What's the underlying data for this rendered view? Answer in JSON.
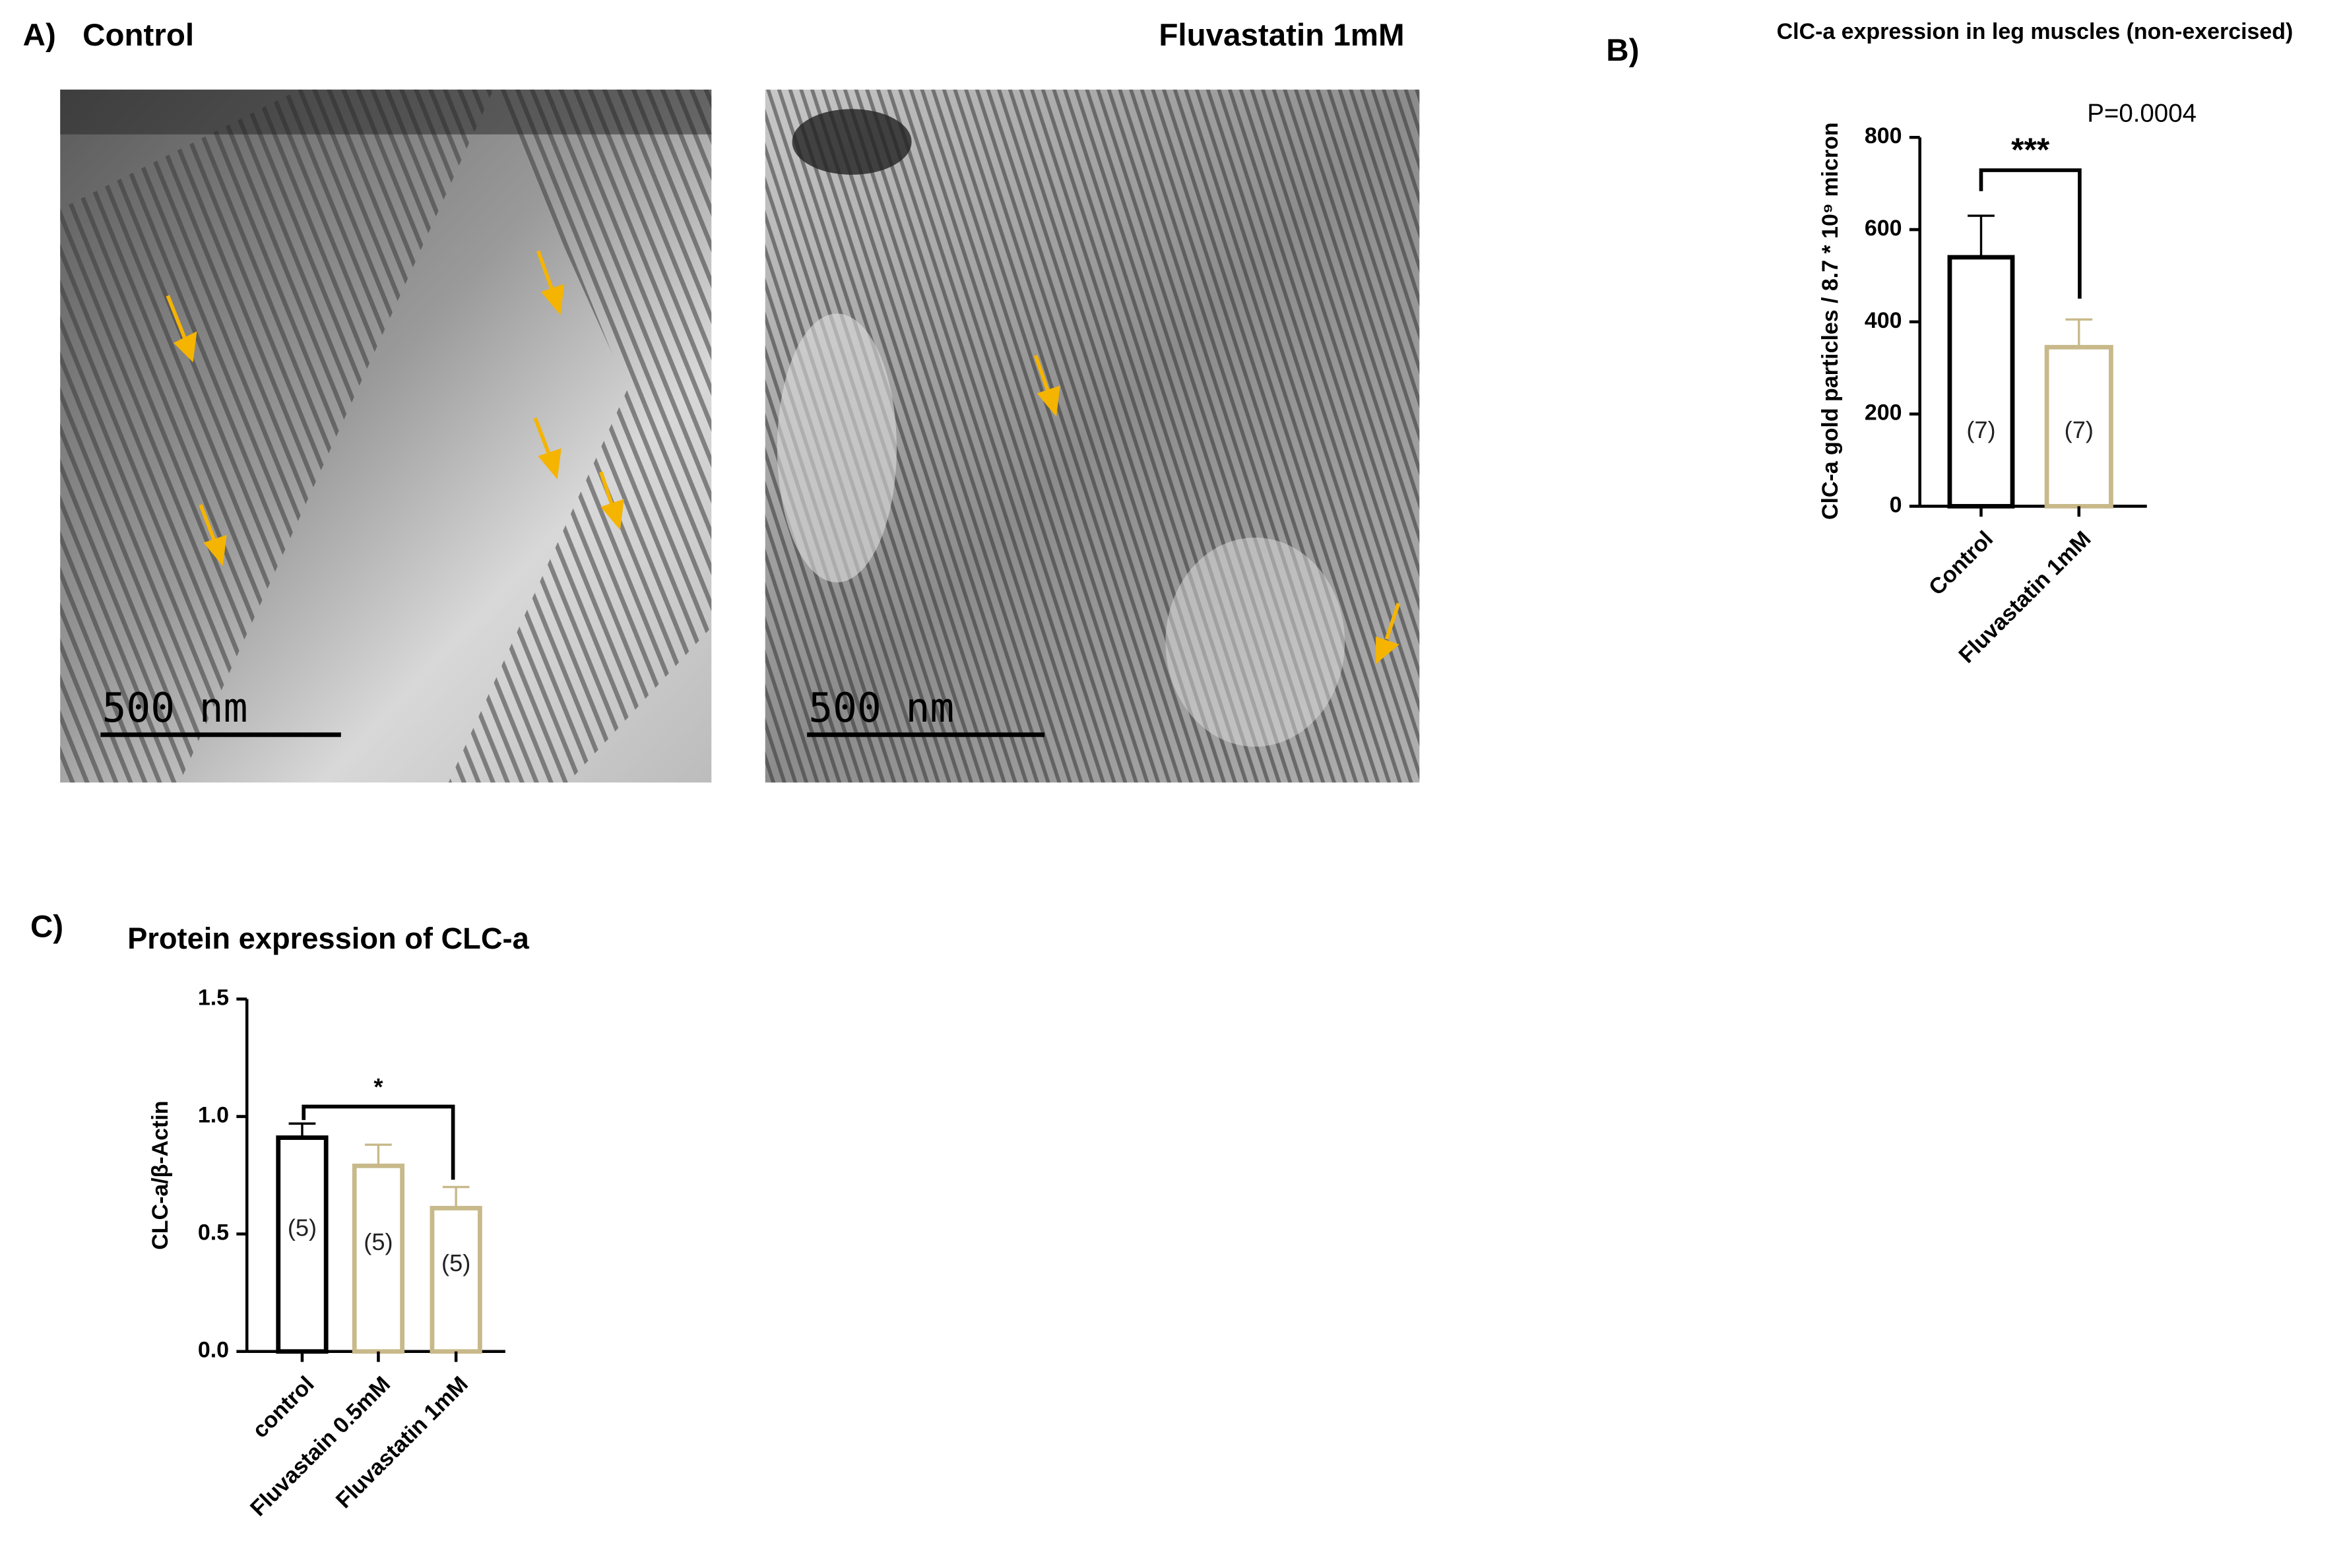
{
  "panel_a": {
    "label": "A)",
    "images": [
      {
        "title": "Control",
        "scale_bar": "500 nm"
      },
      {
        "title": "Fluvastatin 1mM",
        "scale_bar": "500 nm"
      }
    ]
  },
  "chart_data": [
    {
      "type": "bar",
      "panel_label": "B)",
      "title": "ClC-a expression in leg muscles (non-exercised)",
      "ylabel": "ClC-a gold particles / 8.7 * 10⁹ micron",
      "categories": [
        "Control",
        "Fluvastatin 1mM"
      ],
      "values": [
        540,
        345
      ],
      "errors": [
        90,
        60
      ],
      "n_labels": [
        "(7)",
        "(7)"
      ],
      "colors": [
        "#000000",
        "#c8b98a"
      ],
      "ylim": [
        0,
        800
      ],
      "yticks": [
        0,
        200,
        400,
        600,
        800
      ],
      "significance": "***",
      "p_value": "P=0.0004"
    },
    {
      "type": "bar",
      "panel_label": "C)",
      "title": "Protein expression of CLC-a",
      "ylabel": "CLC-a/β-Actin",
      "categories": [
        "control",
        "Fluvastain 0.5mM",
        "Fluvastatin 1mM"
      ],
      "values": [
        0.91,
        0.79,
        0.61
      ],
      "errors": [
        0.06,
        0.09,
        0.09
      ],
      "n_labels": [
        "(5)",
        "(5)",
        "(5)"
      ],
      "colors": [
        "#000000",
        "#c8b98a",
        "#c8b98a"
      ],
      "ylim": [
        0,
        1.5
      ],
      "yticks": [
        {
          "value": 0,
          "label": "0.0"
        },
        0.5,
        {
          "value": 1,
          "label": "1.0"
        },
        1.5
      ],
      "significance": "*"
    }
  ]
}
